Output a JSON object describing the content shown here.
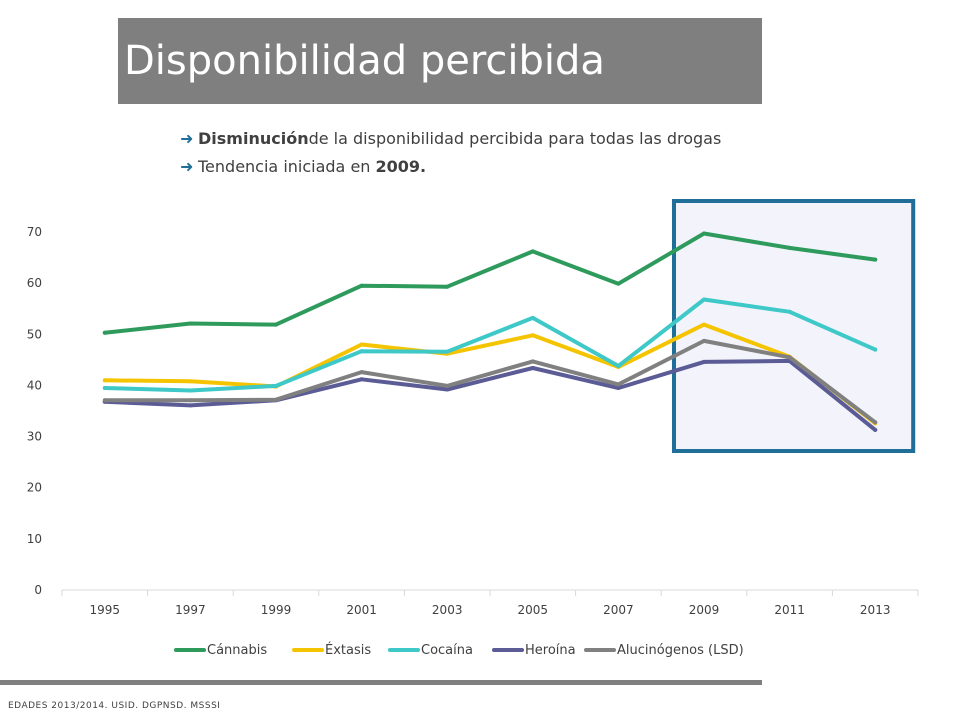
{
  "slide": {
    "title": "Disponibilidad percibida",
    "bullets": [
      {
        "bold": "Disminución",
        "text": " de la disponibilidad percibida para todas las drogas"
      },
      {
        "prefix": "Tendencia iniciada en ",
        "bold": "2009."
      }
    ],
    "footer": "EDADES 2013/2014. USID. DGPNSD. MSSSI",
    "arrow_icon": "right-arrow-icon",
    "highlight_color": "#1f6f98"
  },
  "chart_data": {
    "type": "line",
    "categories": [
      "1995",
      "1997",
      "1999",
      "2001",
      "2003",
      "2005",
      "2007",
      "2009",
      "2011",
      "2013"
    ],
    "yticks": [
      "0",
      "10",
      "20",
      "30",
      "40",
      "50",
      "60",
      "70"
    ],
    "ylim": [
      0,
      70
    ],
    "grid": false,
    "legend_position": "bottom",
    "highlight_range": [
      "2009",
      "2013"
    ],
    "series": [
      {
        "name": "Cánnabis",
        "color": "#2e9a5c",
        "values": [
          50.3,
          52.1,
          51.9,
          59.5,
          59.3,
          66.2,
          59.9,
          69.7,
          66.9,
          64.6
        ]
      },
      {
        "name": "Éxtasis",
        "color": "#f5c400",
        "values": [
          41.0,
          40.8,
          39.8,
          48.0,
          46.2,
          49.8,
          43.6,
          51.9,
          45.6,
          32.6
        ]
      },
      {
        "name": "Cocaína",
        "color": "#3ec8c8",
        "values": [
          39.5,
          39.0,
          39.9,
          46.7,
          46.6,
          53.2,
          43.8,
          56.8,
          54.4,
          47.0
        ]
      },
      {
        "name": "Heroína",
        "color": "#5b5b96",
        "values": [
          36.8,
          36.1,
          37.1,
          41.2,
          39.2,
          43.4,
          39.5,
          44.6,
          44.8,
          31.3
        ]
      },
      {
        "name": "Alucinógenos (LSD)",
        "color": "#808080",
        "values": [
          37.1,
          37.1,
          37.2,
          42.6,
          39.9,
          44.7,
          40.2,
          48.7,
          45.5,
          32.8
        ]
      }
    ]
  }
}
